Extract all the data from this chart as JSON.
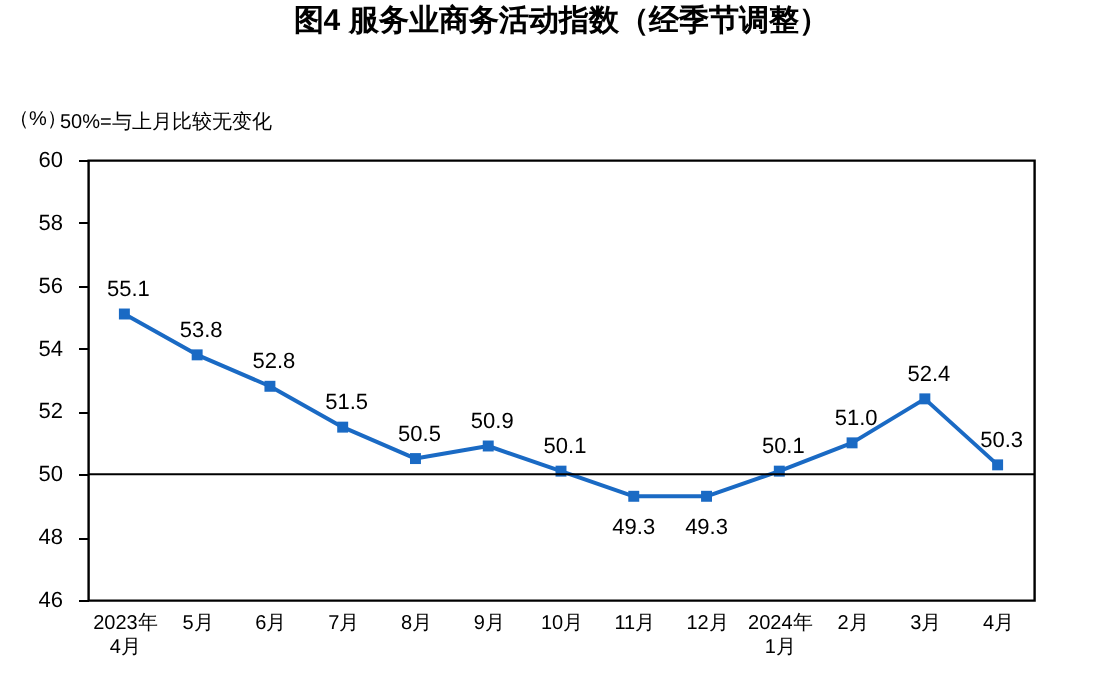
{
  "chart_data": {
    "type": "line",
    "title": "图4  服务业商务活动指数（经季节调整）",
    "ylabel": "（%）",
    "annotations": [
      "50%=与上月比较无变化"
    ],
    "categories": [
      "2023年\n4月",
      "5月",
      "6月",
      "7月",
      "8月",
      "9月",
      "10月",
      "11月",
      "12月",
      "2024年\n1月",
      "2月",
      "3月",
      "4月"
    ],
    "series": [
      {
        "color": "#1a6ac4",
        "values": [
          55.1,
          53.8,
          52.8,
          51.5,
          50.5,
          50.9,
          50.1,
          49.3,
          49.3,
          50.1,
          51.0,
          52.4,
          50.3
        ]
      }
    ],
    "ylim": [
      46,
      60
    ],
    "yticks": [
      46,
      48,
      50,
      52,
      54,
      56,
      58,
      60
    ],
    "ref_lines": [
      {
        "axis": "y",
        "value": 50,
        "color": "#000000"
      }
    ],
    "value_labels": [
      "55.1",
      "53.8",
      "52.8",
      "51.5",
      "50.5",
      "50.9",
      "50.1",
      "49.3",
      "49.3",
      "50.1",
      "51.0",
      "52.4",
      "50.3"
    ],
    "marker": "square",
    "line_style": "solid",
    "grid": false
  }
}
